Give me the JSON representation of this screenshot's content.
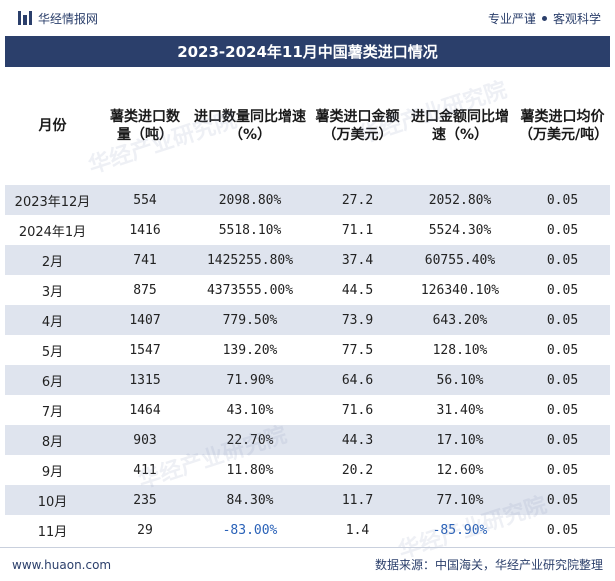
{
  "header": {
    "brand": "华经情报网",
    "slogan_left": "专业严谨",
    "slogan_right": "客观科学"
  },
  "title": "2023-2024年11月中国薯类进口情况",
  "table": {
    "columns": [
      "月份",
      "薯类进口数量（吨）",
      "进口数量同比增速（%）",
      "薯类进口金额（万美元）",
      "进口金额同比增速（%）",
      "薯类进口均价（万美元/吨）"
    ],
    "rows": [
      [
        "2023年12月",
        "554",
        "2098.80%",
        "27.2",
        "2052.80%",
        "0.05"
      ],
      [
        "2024年1月",
        "1416",
        "5518.10%",
        "71.1",
        "5524.30%",
        "0.05"
      ],
      [
        "2月",
        "741",
        "1425255.80%",
        "37.4",
        "60755.40%",
        "0.05"
      ],
      [
        "3月",
        "875",
        "4373555.00%",
        "44.5",
        "126340.10%",
        "0.05"
      ],
      [
        "4月",
        "1407",
        "779.50%",
        "73.9",
        "643.20%",
        "0.05"
      ],
      [
        "5月",
        "1547",
        "139.20%",
        "77.5",
        "128.10%",
        "0.05"
      ],
      [
        "6月",
        "1315",
        "71.90%",
        "64.6",
        "56.10%",
        "0.05"
      ],
      [
        "7月",
        "1464",
        "43.10%",
        "71.6",
        "31.40%",
        "0.05"
      ],
      [
        "8月",
        "903",
        "22.70%",
        "44.3",
        "17.10%",
        "0.05"
      ],
      [
        "9月",
        "411",
        "11.80%",
        "20.2",
        "12.60%",
        "0.05"
      ],
      [
        "10月",
        "235",
        "84.30%",
        "11.7",
        "77.10%",
        "0.05"
      ],
      [
        "11月",
        "29",
        "-83.00%",
        "1.4",
        "-85.90%",
        "0.05"
      ]
    ]
  },
  "footer": {
    "site": "www.huaon.com",
    "source": "数据来源：中国海关，华经产业研究院整理"
  },
  "watermark": "华经产业研究院",
  "colors": {
    "title_bg": "#2b3f6b",
    "stripe": "#dfe4ee",
    "negative": "#2a62b8"
  }
}
